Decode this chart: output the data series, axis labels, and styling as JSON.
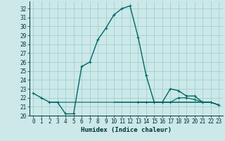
{
  "xlabel": "Humidex (Indice chaleur)",
  "background_color": "#cce8e8",
  "grid_color": "#99cccc",
  "line_color": "#006666",
  "xlim": [
    -0.5,
    23.5
  ],
  "ylim": [
    20,
    32.8
  ],
  "yticks": [
    20,
    21,
    22,
    23,
    24,
    25,
    26,
    27,
    28,
    29,
    30,
    31,
    32
  ],
  "xticks": [
    0,
    1,
    2,
    3,
    4,
    5,
    6,
    7,
    8,
    9,
    10,
    11,
    12,
    13,
    14,
    15,
    16,
    17,
    18,
    19,
    20,
    21,
    22,
    23
  ],
  "main_x": [
    0,
    1,
    2,
    3,
    4,
    5,
    6,
    7,
    8,
    9,
    10,
    11,
    12,
    13,
    14,
    15,
    16,
    17,
    18,
    19,
    20,
    21,
    22,
    23
  ],
  "main_y": [
    22.5,
    22.0,
    21.5,
    21.5,
    20.2,
    20.2,
    25.5,
    26.0,
    28.5,
    29.8,
    31.3,
    32.0,
    32.3,
    28.8,
    24.5,
    21.5,
    21.5,
    23.0,
    22.8,
    22.2,
    22.2,
    21.5,
    21.5,
    21.2
  ],
  "flat1_x": [
    2,
    3,
    4,
    5,
    6,
    7,
    8,
    9,
    10,
    11,
    12,
    13,
    14,
    15,
    16,
    17,
    18,
    19,
    20,
    21,
    22,
    23
  ],
  "flat1_y": [
    21.5,
    21.5,
    21.5,
    21.5,
    21.5,
    21.5,
    21.5,
    21.5,
    21.5,
    21.5,
    21.5,
    21.5,
    21.5,
    21.5,
    21.5,
    21.5,
    21.5,
    21.5,
    21.5,
    21.5,
    21.5,
    21.2
  ],
  "flat2_x": [
    10,
    11,
    12,
    13,
    14,
    15,
    16,
    17,
    18,
    19,
    20,
    21,
    22,
    23
  ],
  "flat2_y": [
    21.5,
    21.5,
    21.5,
    21.5,
    21.5,
    21.5,
    21.5,
    21.5,
    21.5,
    21.5,
    21.5,
    21.5,
    21.5,
    21.2
  ],
  "flat3_x": [
    13,
    14,
    15,
    16,
    17,
    18,
    19,
    20,
    21,
    22,
    23
  ],
  "flat3_y": [
    21.5,
    21.5,
    21.5,
    21.5,
    21.5,
    22.0,
    22.0,
    21.8,
    21.5,
    21.5,
    21.2
  ],
  "tick_fontsize": 5.5,
  "label_fontsize": 6.5,
  "font_color": "#003333"
}
